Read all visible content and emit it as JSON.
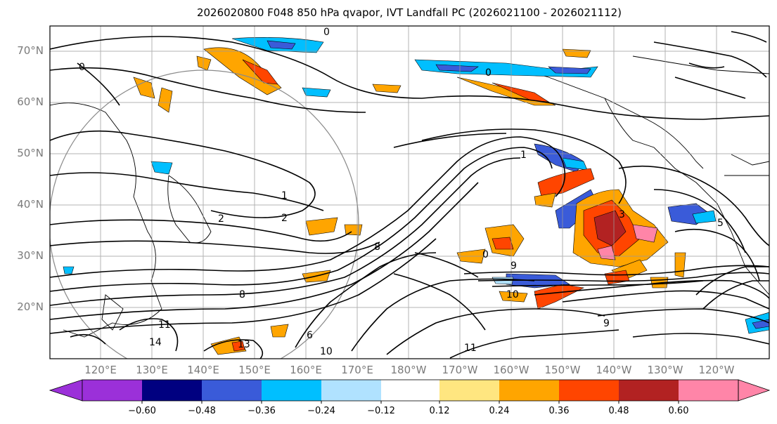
{
  "title": "2026020800 F048 850 hPa qvapor, IVT Landfall PC (2026021100 - 2026021112)",
  "lat_labels": [
    "70°N",
    "60°N",
    "50°N",
    "40°N",
    "30°N",
    "20°N"
  ],
  "lon_labels": [
    "120°E",
    "130°E",
    "140°E",
    "150°E",
    "160°E",
    "170°E",
    "180°W",
    "170°W",
    "160°W",
    "150°W",
    "140°W",
    "130°W",
    "120°W"
  ],
  "colorbar": {
    "tick_labels": [
      "−0.60",
      "−0.48",
      "−0.36",
      "−0.24",
      "−0.12",
      "0.12",
      "0.24",
      "0.36",
      "0.48",
      "0.60"
    ],
    "bins": [
      {
        "color": "#9b30d9"
      },
      {
        "color": "#000080"
      },
      {
        "color": "#3a5bd9"
      },
      {
        "color": "#00bfff"
      },
      {
        "color": "#b0e2ff"
      },
      {
        "color": "#ffffff"
      },
      {
        "color": "#ffe680"
      },
      {
        "color": "#ffa500"
      },
      {
        "color": "#ff4500"
      },
      {
        "color": "#b22222"
      },
      {
        "color": "#ff85a8"
      }
    ]
  },
  "contour_labels": [
    "0",
    "0",
    "0",
    "0",
    "1",
    "1",
    "2",
    "2",
    "3",
    "5",
    "6",
    "8",
    "8",
    "9",
    "9",
    "10",
    "10",
    "11",
    "11",
    "13",
    "14"
  ]
}
